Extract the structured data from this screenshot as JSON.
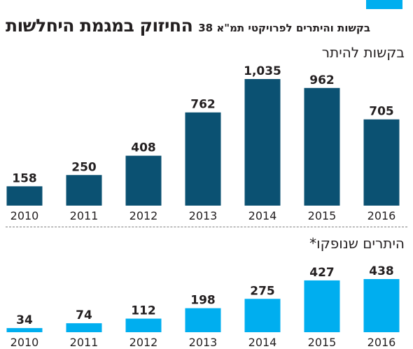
{
  "header": {
    "title": "החיזוק במגמת היחלשות",
    "subtitle": "בקשות והיתרים לפרויקטי תמ\"א 38"
  },
  "colors": {
    "accent": "#00aeef",
    "requests_bar": "#0b5172",
    "permits_bar": "#00aeef",
    "divider": "#808080"
  },
  "chart_data": [
    {
      "type": "bar",
      "title": "בקשות להיתר",
      "categories": [
        "2010",
        "2011",
        "2012",
        "2013",
        "2014",
        "2015",
        "2016"
      ],
      "values": [
        158,
        250,
        408,
        762,
        1035,
        962,
        705
      ],
      "value_labels": [
        "158",
        "250",
        "408",
        "762",
        "1,035",
        "962",
        "705"
      ],
      "xlabel": "",
      "ylabel": "",
      "ylim": [
        0,
        1100
      ],
      "grid": false,
      "legend": "none"
    },
    {
      "type": "bar",
      "title": "היתרים שנופקו*",
      "categories": [
        "2010",
        "2011",
        "2012",
        "2013",
        "2014",
        "2015",
        "2016"
      ],
      "values": [
        34,
        74,
        112,
        198,
        275,
        427,
        438
      ],
      "value_labels": [
        "34",
        "74",
        "112",
        "198",
        "275",
        "427",
        "438"
      ],
      "xlabel": "",
      "ylabel": "",
      "ylim": [
        0,
        470
      ],
      "grid": false,
      "legend": "none"
    }
  ]
}
